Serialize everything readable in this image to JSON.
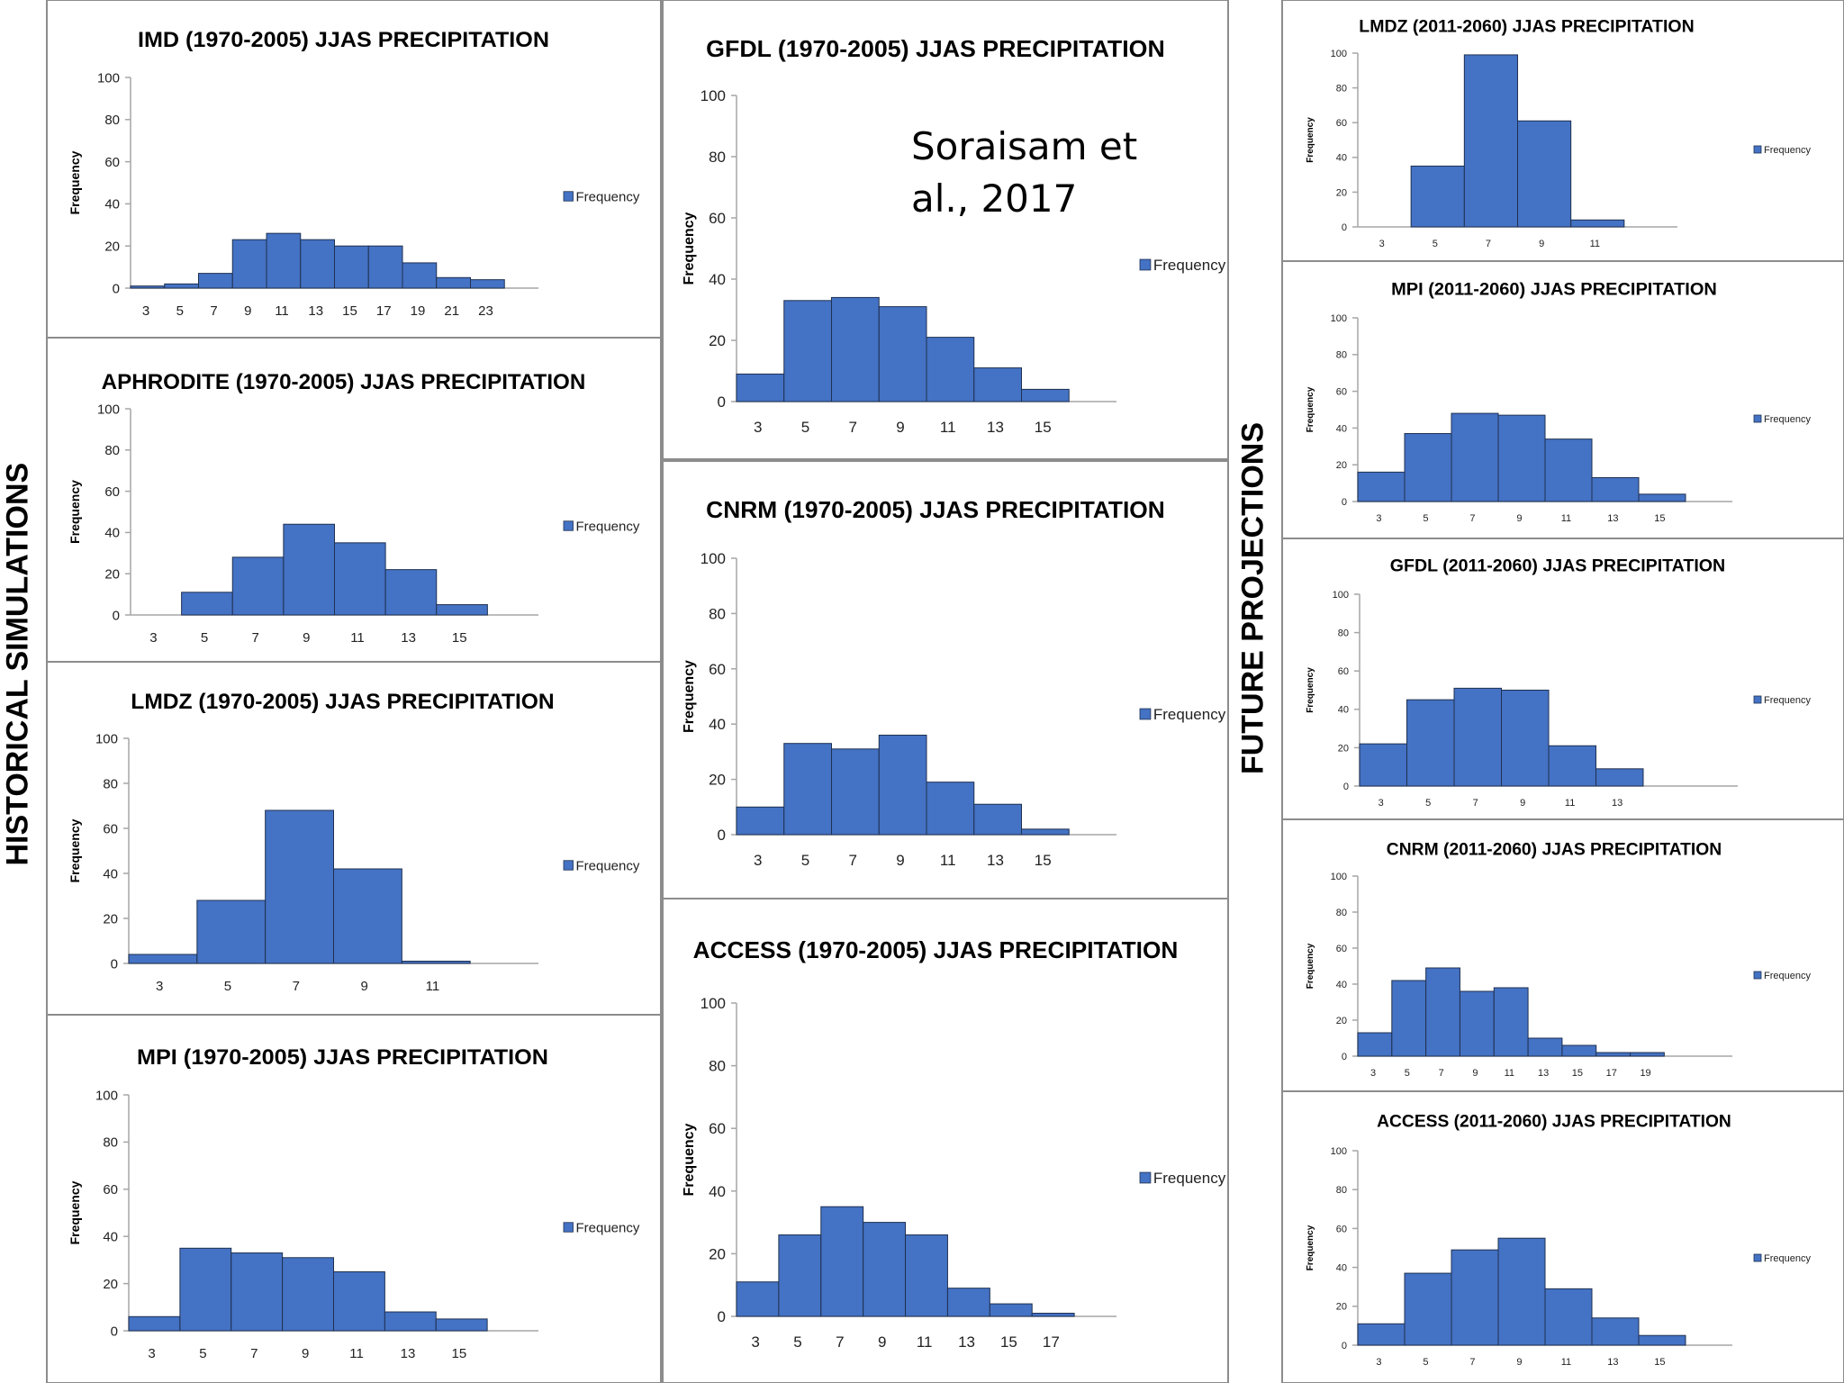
{
  "side_labels": {
    "historical": "HISTORICAL SIMULATIONS",
    "future": "FUTURE PROJECTIONS"
  },
  "citation": {
    "line1": "Soraisam et",
    "line2": "al., 2017"
  },
  "colors": {
    "bar": "#4472C4",
    "bar_edge": "#1f3050",
    "border": "#8c8c8c",
    "axis": "#a6a6a6"
  },
  "chart_data": [
    {
      "type": "bar",
      "title": "IMD (1970-2005) JJAS PRECIPITATION",
      "ylabel": "Frequency",
      "legend": "Frequency",
      "legend_position": "right",
      "ylim": [
        0,
        100
      ],
      "yticks": [
        0,
        20,
        40,
        60,
        80,
        100
      ],
      "categories": [
        "3",
        "5",
        "7",
        "9",
        "11",
        "13",
        "15",
        "17",
        "19",
        "21",
        "23"
      ],
      "values": [
        1,
        2,
        7,
        23,
        26,
        23,
        20,
        20,
        12,
        5,
        4
      ]
    },
    {
      "type": "bar",
      "title": "APHRODITE (1970-2005) JJAS PRECIPITATION",
      "ylabel": "Frequency",
      "legend": "Frequency",
      "legend_position": "right",
      "ylim": [
        0,
        100
      ],
      "yticks": [
        0,
        20,
        40,
        60,
        80,
        100
      ],
      "categories": [
        "3",
        "5",
        "7",
        "9",
        "11",
        "13",
        "15"
      ],
      "values": [
        0,
        11,
        28,
        44,
        35,
        22,
        5
      ]
    },
    {
      "type": "bar",
      "title": "LMDZ (1970-2005) JJAS PRECIPITATION",
      "ylabel": "Frequency",
      "legend": "Frequency",
      "legend_position": "right",
      "ylim": [
        0,
        100
      ],
      "yticks": [
        0,
        20,
        40,
        60,
        80,
        100
      ],
      "categories": [
        "3",
        "5",
        "7",
        "9",
        "11"
      ],
      "values": [
        4,
        28,
        68,
        42,
        1
      ]
    },
    {
      "type": "bar",
      "title": "MPI (1970-2005) JJAS PRECIPITATION",
      "ylabel": "Frequency",
      "legend": "Frequency",
      "legend_position": "right",
      "ylim": [
        0,
        100
      ],
      "yticks": [
        0,
        20,
        40,
        60,
        80,
        100
      ],
      "categories": [
        "3",
        "5",
        "7",
        "9",
        "11",
        "13",
        "15"
      ],
      "values": [
        6,
        35,
        33,
        31,
        25,
        8,
        5
      ]
    },
    {
      "type": "bar",
      "title": "GFDL (1970-2005) JJAS PRECIPITATION",
      "ylabel": "Frequency",
      "legend": "Frequency",
      "legend_position": "right",
      "ylim": [
        0,
        100
      ],
      "yticks": [
        0,
        20,
        40,
        60,
        80,
        100
      ],
      "categories": [
        "3",
        "5",
        "7",
        "9",
        "11",
        "13",
        "15"
      ],
      "values": [
        9,
        33,
        34,
        31,
        21,
        11,
        4
      ]
    },
    {
      "type": "bar",
      "title": "CNRM (1970-2005) JJAS PRECIPITATION",
      "ylabel": "Frequency",
      "legend": "Frequency",
      "legend_position": "right",
      "ylim": [
        0,
        100
      ],
      "yticks": [
        0,
        20,
        40,
        60,
        80,
        100
      ],
      "categories": [
        "3",
        "5",
        "7",
        "9",
        "11",
        "13",
        "15"
      ],
      "values": [
        10,
        33,
        31,
        36,
        19,
        11,
        2
      ]
    },
    {
      "type": "bar",
      "title": "ACCESS (1970-2005) JJAS PRECIPITATION",
      "ylabel": "Frequency",
      "legend": "Frequency",
      "legend_position": "right",
      "ylim": [
        0,
        100
      ],
      "yticks": [
        0,
        20,
        40,
        60,
        80,
        100
      ],
      "categories": [
        "3",
        "5",
        "7",
        "9",
        "11",
        "13",
        "15",
        "17"
      ],
      "values": [
        11,
        26,
        35,
        30,
        26,
        9,
        4,
        1
      ]
    },
    {
      "type": "bar",
      "title": "LMDZ (2011-2060) JJAS PRECIPITATION",
      "ylabel": "Frequency",
      "legend": "Frequency",
      "legend_position": "right",
      "ylim": [
        0,
        100
      ],
      "yticks": [
        0,
        20,
        40,
        60,
        80,
        100
      ],
      "categories": [
        "3",
        "5",
        "7",
        "9",
        "11"
      ],
      "values": [
        0,
        35,
        99,
        61,
        4
      ]
    },
    {
      "type": "bar",
      "title": "MPI (2011-2060) JJAS PRECIPITATION",
      "ylabel": "Frequency",
      "legend": "Frequency",
      "legend_position": "right",
      "ylim": [
        0,
        100
      ],
      "yticks": [
        0,
        20,
        40,
        60,
        80,
        100
      ],
      "categories": [
        "3",
        "5",
        "7",
        "9",
        "11",
        "13",
        "15"
      ],
      "values": [
        16,
        37,
        48,
        47,
        34,
        13,
        4
      ]
    },
    {
      "type": "bar",
      "title": "GFDL (2011-2060) JJAS PRECIPITATION",
      "ylabel": "Frequency",
      "legend": "Frequency",
      "legend_position": "right",
      "ylim": [
        0,
        100
      ],
      "yticks": [
        0,
        20,
        40,
        60,
        80,
        100
      ],
      "categories": [
        "3",
        "5",
        "7",
        "9",
        "11",
        "13"
      ],
      "values": [
        22,
        45,
        51,
        50,
        21,
        9
      ]
    },
    {
      "type": "bar",
      "title": "CNRM (2011-2060) JJAS PRECIPITATION",
      "ylabel": "Frequency",
      "legend": "Frequency",
      "legend_position": "right",
      "ylim": [
        0,
        100
      ],
      "yticks": [
        0,
        20,
        40,
        60,
        80,
        100
      ],
      "categories": [
        "3",
        "5",
        "7",
        "9",
        "11",
        "13",
        "15",
        "17",
        "19"
      ],
      "values": [
        13,
        42,
        49,
        36,
        38,
        10,
        6,
        2,
        2
      ]
    },
    {
      "type": "bar",
      "title": "ACCESS (2011-2060) JJAS PRECIPITATION",
      "ylabel": "Frequency",
      "legend": "Frequency",
      "legend_position": "right",
      "ylim": [
        0,
        100
      ],
      "yticks": [
        0,
        20,
        40,
        60,
        80,
        100
      ],
      "categories": [
        "3",
        "5",
        "7",
        "9",
        "11",
        "13",
        "15"
      ],
      "values": [
        11,
        37,
        49,
        55,
        29,
        14,
        5
      ]
    }
  ]
}
